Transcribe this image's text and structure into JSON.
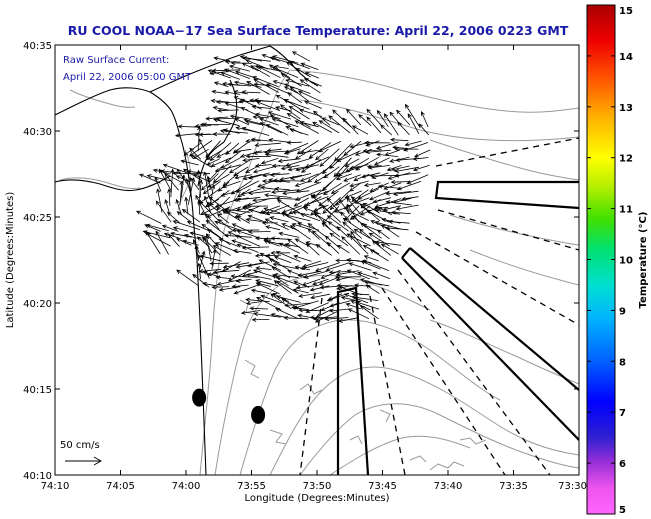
{
  "chart_data": {
    "type": "quiver-map",
    "title": "RU COOL  NOAA−17  Sea Surface Temperature:  April 22, 2006 0223 GMT",
    "annotation_lines": [
      "Raw Surface Current:",
      "April 22, 2006 05:00 GMT"
    ],
    "xlabel": "Longitude (Degrees:Minutes)",
    "ylabel": "Latitude (Degrees:Minutes)",
    "x_ticks": [
      "74:10",
      "74:05",
      "74:00",
      "73:55",
      "73:50",
      "73:45",
      "73:40",
      "73:35",
      "73:30"
    ],
    "y_ticks": [
      "40:10",
      "40:15",
      "40:20",
      "40:25",
      "40:30",
      "40:35"
    ],
    "xlim": [
      -74.1667,
      -73.5
    ],
    "ylim": [
      40.1667,
      40.5833
    ],
    "scale_arrow_label": "50 cm/s",
    "colorbar": {
      "label": "Temperature (°C)",
      "range": [
        5,
        15
      ],
      "ticks": [
        "5",
        "6",
        "7",
        "8",
        "9",
        "10",
        "11",
        "12",
        "13",
        "14",
        "15"
      ]
    },
    "markers": [
      {
        "lon": -73.9833,
        "lat": 40.2417
      },
      {
        "lon": -73.9083,
        "lat": 40.225
      }
    ]
  }
}
